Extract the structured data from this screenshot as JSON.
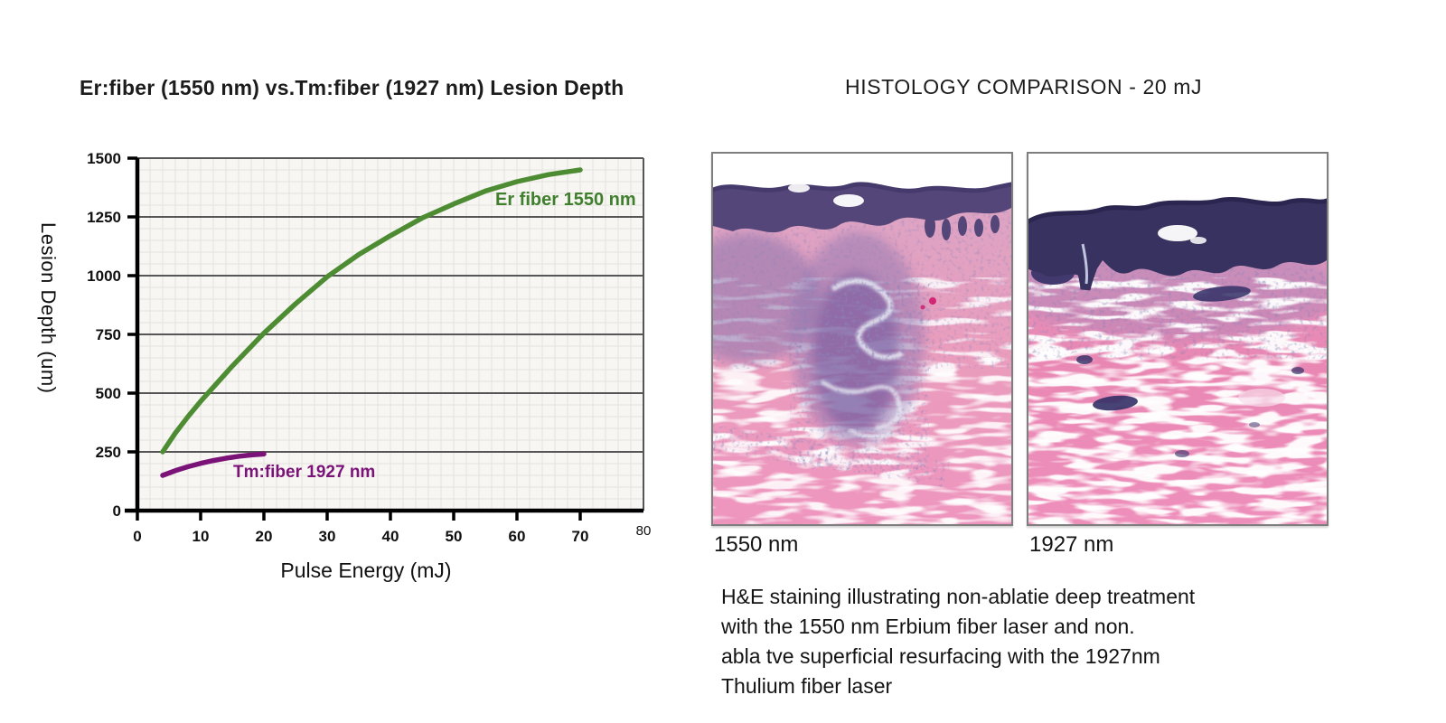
{
  "chart_data": {
    "type": "line",
    "title": "Er:fiber (1550 nm) vs.Tm:fiber (1927 nm) Lesion Depth",
    "xlabel": "Pulse Energy (mJ)",
    "ylabel": "Lesion Depth (um)",
    "xlim": [
      0,
      80
    ],
    "ylim": [
      0,
      1500
    ],
    "xticks": [
      0,
      10,
      20,
      30,
      40,
      50,
      60,
      70,
      80
    ],
    "yticks": [
      0,
      250,
      500,
      750,
      1000,
      1250,
      1500
    ],
    "grid": {
      "major_horizontal": true,
      "minor": true,
      "minor_x_step": 2,
      "minor_y_step": 50
    },
    "legend_position": "inline-labels",
    "plot_bg": "#f7f6f3",
    "minor_grid_color": "#e5e3de",
    "major_grid_color": "#565656",
    "series": [
      {
        "name": "Er fiber 1550 nm",
        "color": "#4e8c33",
        "x": [
          4,
          6,
          8,
          10,
          12,
          15,
          20,
          25,
          30,
          35,
          40,
          45,
          50,
          55,
          60,
          65,
          70
        ],
        "y": [
          250,
          330,
          400,
          465,
          525,
          615,
          755,
          880,
          995,
          1090,
          1170,
          1245,
          1305,
          1360,
          1400,
          1430,
          1450
        ]
      },
      {
        "name": "Tm:fiber 1927 nm",
        "color": "#7a1277",
        "x": [
          4,
          6,
          8,
          10,
          12,
          14,
          16,
          18,
          20
        ],
        "y": [
          150,
          170,
          187,
          201,
          213,
          223,
          231,
          237,
          241
        ]
      }
    ]
  },
  "histology": {
    "title": "HISTOLOGY COMPARISON - 20 mJ",
    "images": [
      {
        "label": "1550 nm"
      },
      {
        "label": "1927 nm"
      }
    ],
    "caption_lines": [
      "H&E staining illustrating non-ablatie deep treatment",
      "with the 1550 nm Erbium fiber laser and non.",
      "abla tve superficial resurfacing with the 1927nm",
      "Thulium fiber laser"
    ]
  }
}
